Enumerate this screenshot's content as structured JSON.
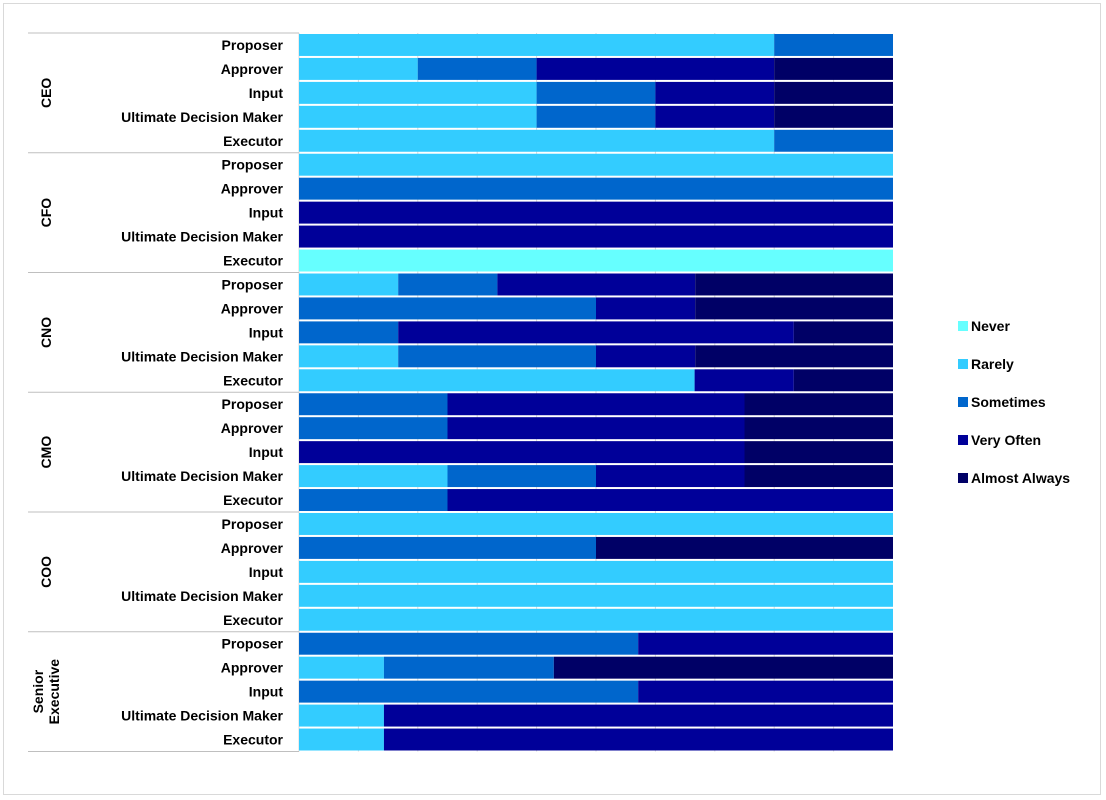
{
  "chart_data": {
    "type": "bar",
    "orientation": "horizontal",
    "stacked": true,
    "percent_stacked": true,
    "xlim": [
      0,
      100
    ],
    "grid": true,
    "legend_position": "right",
    "legend": [
      {
        "name": "Never",
        "color": "#66ffff"
      },
      {
        "name": "Rarely",
        "color": "#33ccff"
      },
      {
        "name": "Sometimes",
        "color": "#0066cc"
      },
      {
        "name": "Very Often",
        "color": "#000099"
      },
      {
        "name": "Almost Always",
        "color": "#000066"
      }
    ],
    "groups": [
      {
        "name": "CEO",
        "rows": [
          {
            "label": "Proposer",
            "values": [
              0,
              80,
              20,
              0,
              0
            ]
          },
          {
            "label": "Approver",
            "values": [
              0,
              20,
              20,
              40,
              20
            ]
          },
          {
            "label": "Input",
            "values": [
              0,
              40,
              20,
              20,
              20
            ]
          },
          {
            "label": "Ultimate Decision Maker",
            "values": [
              0,
              40,
              20,
              20,
              20
            ]
          },
          {
            "label": "Executor",
            "values": [
              0,
              80,
              20,
              0,
              0
            ]
          }
        ]
      },
      {
        "name": "CFO",
        "rows": [
          {
            "label": "Proposer",
            "values": [
              0,
              100,
              0,
              0,
              0
            ]
          },
          {
            "label": "Approver",
            "values": [
              0,
              0,
              100,
              0,
              0
            ]
          },
          {
            "label": "Input",
            "values": [
              0,
              0,
              0,
              100,
              0
            ]
          },
          {
            "label": "Ultimate Decision Maker",
            "values": [
              0,
              0,
              0,
              100,
              0
            ]
          },
          {
            "label": "Executor",
            "values": [
              100,
              0,
              0,
              0,
              0
            ]
          }
        ]
      },
      {
        "name": "CNO",
        "rows": [
          {
            "label": "Proposer",
            "values": [
              0,
              16.7,
              16.7,
              33.3,
              33.3
            ]
          },
          {
            "label": "Approver",
            "values": [
              0,
              0,
              50,
              16.7,
              33.3
            ]
          },
          {
            "label": "Input",
            "values": [
              0,
              0,
              16.7,
              66.6,
              16.7
            ]
          },
          {
            "label": "Ultimate Decision Maker",
            "values": [
              0,
              16.7,
              33.3,
              16.7,
              33.3
            ]
          },
          {
            "label": "Executor",
            "values": [
              0,
              66.6,
              0,
              16.7,
              16.7
            ]
          }
        ]
      },
      {
        "name": "CMO",
        "rows": [
          {
            "label": "Proposer",
            "values": [
              0,
              0,
              25,
              50,
              25
            ]
          },
          {
            "label": "Approver",
            "values": [
              0,
              0,
              25,
              50,
              25
            ]
          },
          {
            "label": "Input",
            "values": [
              0,
              0,
              0,
              75,
              25
            ]
          },
          {
            "label": "Ultimate Decision Maker",
            "values": [
              0,
              25,
              25,
              25,
              25
            ]
          },
          {
            "label": "Executor",
            "values": [
              0,
              0,
              25,
              75,
              0
            ]
          }
        ]
      },
      {
        "name": "COO",
        "rows": [
          {
            "label": "Proposer",
            "values": [
              0,
              100,
              0,
              0,
              0
            ]
          },
          {
            "label": "Approver",
            "values": [
              0,
              0,
              50,
              0,
              50
            ]
          },
          {
            "label": "Input",
            "values": [
              0,
              100,
              0,
              0,
              0
            ]
          },
          {
            "label": "Ultimate Decision Maker",
            "values": [
              0,
              100,
              0,
              0,
              0
            ]
          },
          {
            "label": "Executor",
            "values": [
              0,
              100,
              0,
              0,
              0
            ]
          }
        ]
      },
      {
        "name": "Senior Executive",
        "name_lines": [
          "Senior",
          "Executive"
        ],
        "rows": [
          {
            "label": "Proposer",
            "values": [
              0,
              0,
              57.1,
              42.9,
              0
            ]
          },
          {
            "label": "Approver",
            "values": [
              0,
              14.3,
              28.6,
              0,
              57.1
            ]
          },
          {
            "label": "Input",
            "values": [
              0,
              0,
              57.1,
              42.9,
              0
            ]
          },
          {
            "label": "Ultimate Decision Maker",
            "values": [
              0,
              14.3,
              0,
              85.7,
              0
            ]
          },
          {
            "label": "Executor",
            "values": [
              0,
              14.3,
              0,
              85.7,
              0
            ]
          }
        ]
      }
    ]
  }
}
